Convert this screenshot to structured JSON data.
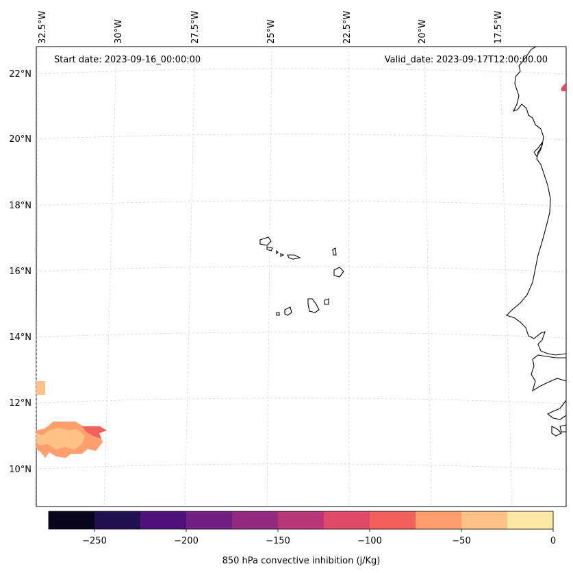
{
  "header": {
    "start_date": "Start date: 2023-09-16_00:00:00",
    "valid_date": "Valid_date: 2023-09-17T12:00:00.00"
  },
  "lon_labels": [
    "32.5°W",
    "30°W",
    "27.5°W",
    "25°W",
    "22.5°W",
    "20°W",
    "17.5°W"
  ],
  "lat_labels": [
    "22°N",
    "20°N",
    "18°N",
    "16°N",
    "14°N",
    "12°N",
    "10°N"
  ],
  "colorbar": {
    "title": "850 hPa convective inhibition (j/Kg)",
    "tick_labels": [
      "−250",
      "−200",
      "−150",
      "−100",
      "−50",
      "0"
    ],
    "bins": [
      -275,
      -250,
      -225,
      -200,
      -175,
      -150,
      -125,
      -100,
      -75,
      -50,
      -25,
      0
    ],
    "colors": [
      "#07061c",
      "#221150",
      "#4f127b",
      "#721f81",
      "#932b80",
      "#b73779",
      "#de4968",
      "#f1605d",
      "#fe9f6d",
      "#fec287",
      "#fde9a6"
    ]
  },
  "chart_data": {
    "type": "heatmap",
    "variable": "850 hPa convective inhibition",
    "units": "j/Kg",
    "lon_range": [
      -33,
      -15.8
    ],
    "lat_range": [
      9,
      22.8
    ],
    "grid": true,
    "regions": [
      {
        "lat": 12.4,
        "lon": -32.8,
        "value": -40
      },
      {
        "lat": 10.9,
        "lon": -31.5,
        "value": -60
      },
      {
        "lat": 10.9,
        "lon": -31.5,
        "value": -35
      },
      {
        "lat": 11.1,
        "lon": -30.5,
        "value": -85
      },
      {
        "lat": 21.5,
        "lon": -16.0,
        "value": -110
      }
    ]
  }
}
